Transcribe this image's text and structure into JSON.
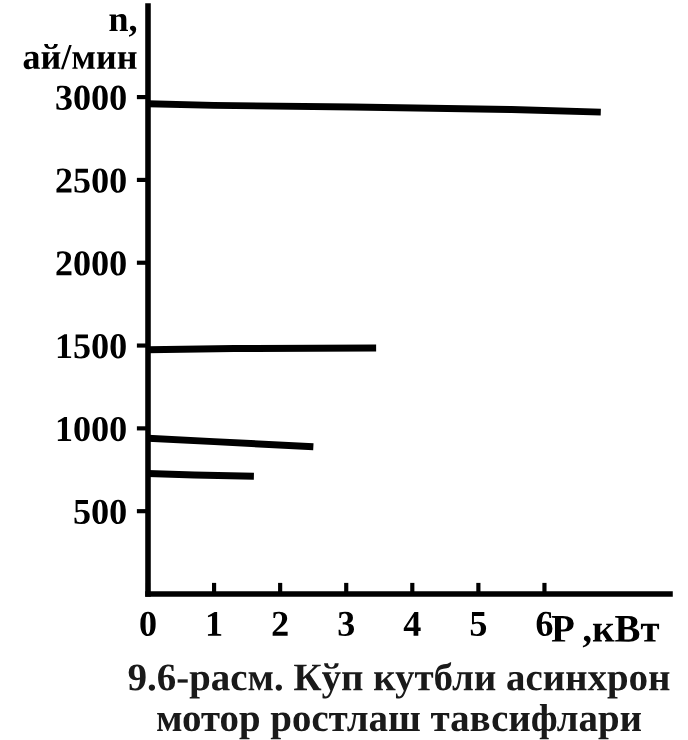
{
  "chart_data": {
    "type": "line",
    "ylabel": "n,\nай/мин",
    "xlabel": "P ,кВт",
    "annotations": [
      "9.6-расм. Кўп кутбли асинхрон\nмотор ростлаш тавсифлари"
    ],
    "xlim": [
      0,
      7.9
    ],
    "ylim": [
      0,
      3550
    ],
    "xticks": [
      0,
      1,
      2,
      3,
      4,
      5,
      6
    ],
    "yticks": [
      500,
      1000,
      1500,
      2000,
      2500,
      3000
    ],
    "grid": false,
    "legend": false,
    "marker": "none",
    "line_style": "solid",
    "series": [
      {
        "color": "#000000",
        "x": [
          0,
          1,
          3.1,
          5.5,
          6.8
        ],
        "values": [
          2960,
          2950,
          2940,
          2925,
          2910
        ]
      },
      {
        "color": "#000000",
        "x": [
          0,
          1.3,
          3.4
        ],
        "values": [
          1475,
          1482,
          1485
        ]
      },
      {
        "color": "#000000",
        "x": [
          0,
          1,
          2.45
        ],
        "values": [
          940,
          920,
          890
        ]
      },
      {
        "color": "#000000",
        "x": [
          0,
          0.7,
          1.55
        ],
        "values": [
          728,
          718,
          711
        ]
      }
    ]
  }
}
